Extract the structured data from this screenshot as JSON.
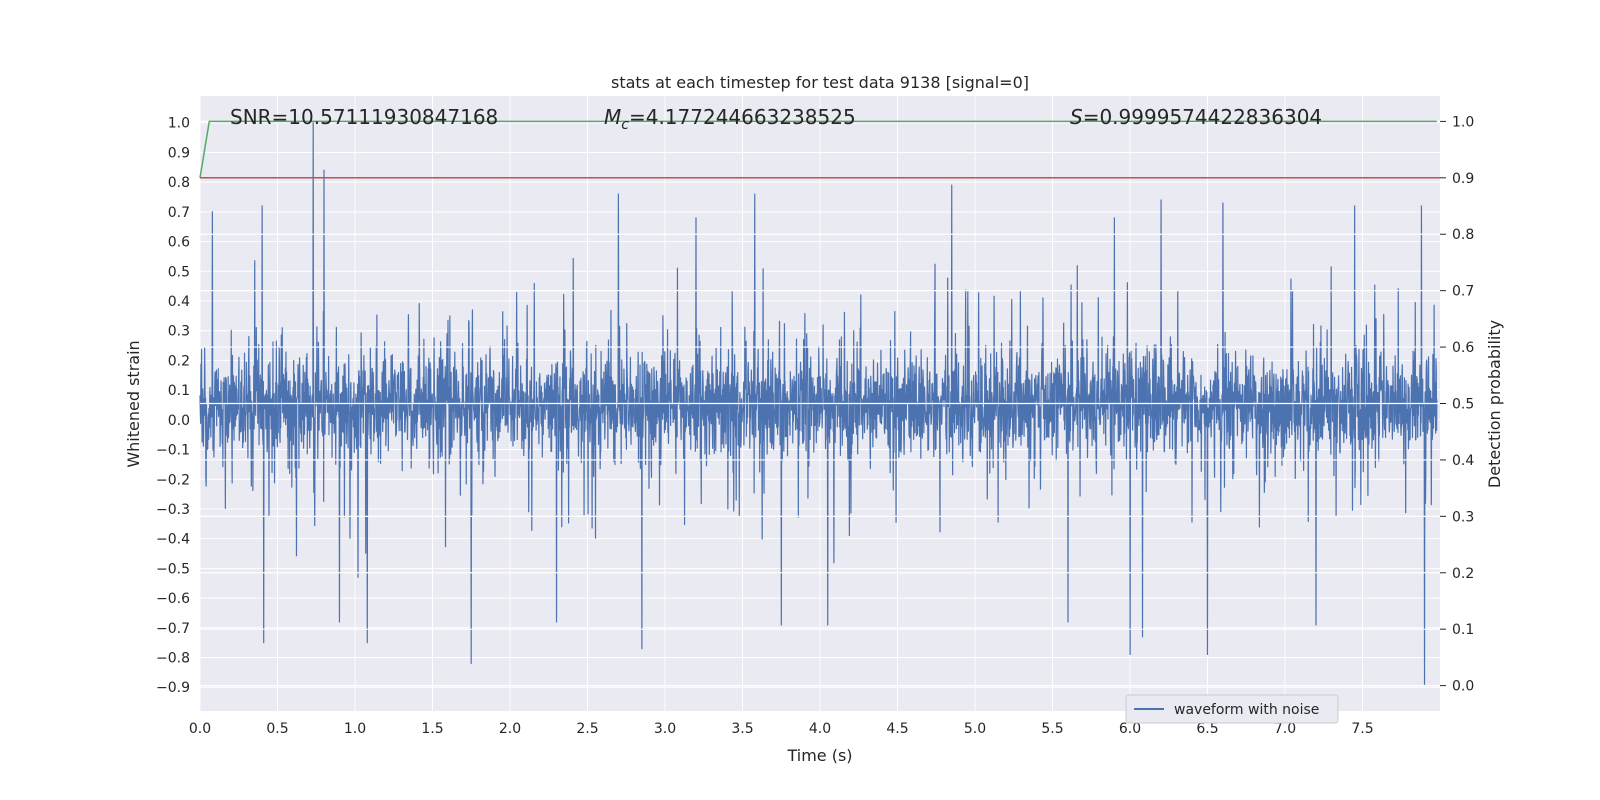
{
  "chart_data": {
    "type": "line",
    "title": "stats at each timestep for test data 9138 [signal=0]",
    "xlabel": "Time (s)",
    "ylabel": "Whitened strain",
    "y2label": "Detection probability",
    "xlim": [
      0.0,
      8.0
    ],
    "ylim": [
      -0.98,
      1.09
    ],
    "y2lim": [
      -0.045,
      1.045
    ],
    "x_ticks": [
      0.0,
      0.5,
      1.0,
      1.5,
      2.0,
      2.5,
      3.0,
      3.5,
      4.0,
      4.5,
      5.0,
      5.5,
      6.0,
      6.5,
      7.0,
      7.5
    ],
    "x_tick_labels": [
      "0.0",
      "0.5",
      "1.0",
      "1.5",
      "2.0",
      "2.5",
      "3.0",
      "3.5",
      "4.0",
      "4.5",
      "5.0",
      "5.5",
      "6.0",
      "6.5",
      "7.0",
      "7.5"
    ],
    "y_ticks": [
      -0.9,
      -0.8,
      -0.7,
      -0.6,
      -0.5,
      -0.4,
      -0.3,
      -0.2,
      -0.1,
      0.0,
      0.1,
      0.2,
      0.3,
      0.4,
      0.5,
      0.6,
      0.7,
      0.8,
      0.9,
      1.0
    ],
    "y_tick_labels": [
      "−0.9",
      "−0.8",
      "−0.7",
      "−0.6",
      "−0.5",
      "−0.4",
      "−0.3",
      "−0.2",
      "−0.1",
      "0.0",
      "0.1",
      "0.2",
      "0.3",
      "0.4",
      "0.5",
      "0.6",
      "0.7",
      "0.8",
      "0.9",
      "1.0"
    ],
    "y2_ticks": [
      0.0,
      0.1,
      0.2,
      0.3,
      0.4,
      0.5,
      0.6,
      0.7,
      0.8,
      0.9,
      1.0
    ],
    "y2_tick_labels": [
      "0.0",
      "0.1",
      "0.2",
      "0.3",
      "0.4",
      "0.5",
      "0.6",
      "0.7",
      "0.8",
      "0.9",
      "1.0"
    ],
    "grid": true,
    "legend_position": "bottom-right",
    "colors": {
      "plot_bg": "#eaeaf2",
      "grid": "#ffffff",
      "waveform": "#4c72b0",
      "probability": "#55a868",
      "threshold": "#c44e52",
      "text": "#262626"
    },
    "series": [
      {
        "name": "waveform with noise",
        "axis": "left",
        "kind": "noise-trace",
        "x_range": [
          0.0,
          7.98
        ],
        "typical_envelope": [
          -0.35,
          0.45
        ],
        "peaks": [
          {
            "x": 0.73,
            "y": 1.0
          },
          {
            "x": 0.8,
            "y": 0.84
          },
          {
            "x": 0.4,
            "y": 0.72
          },
          {
            "x": 0.08,
            "y": 0.7
          },
          {
            "x": 2.7,
            "y": 0.76
          },
          {
            "x": 3.58,
            "y": 0.76
          },
          {
            "x": 4.85,
            "y": 0.79
          },
          {
            "x": 6.2,
            "y": 0.74
          },
          {
            "x": 6.6,
            "y": 0.73
          },
          {
            "x": 7.45,
            "y": 0.72
          },
          {
            "x": 7.88,
            "y": 0.72
          },
          {
            "x": 5.9,
            "y": 0.68
          },
          {
            "x": 3.2,
            "y": 0.68
          },
          {
            "x": 1.75,
            "y": -0.82
          },
          {
            "x": 2.85,
            "y": -0.77
          },
          {
            "x": 0.41,
            "y": -0.75
          },
          {
            "x": 1.08,
            "y": -0.75
          },
          {
            "x": 6.0,
            "y": -0.79
          },
          {
            "x": 6.5,
            "y": -0.79
          },
          {
            "x": 7.9,
            "y": -0.89
          },
          {
            "x": 3.75,
            "y": -0.69
          },
          {
            "x": 4.05,
            "y": -0.69
          },
          {
            "x": 7.2,
            "y": -0.69
          },
          {
            "x": 0.9,
            "y": -0.68
          },
          {
            "x": 2.3,
            "y": -0.68
          },
          {
            "x": 5.6,
            "y": -0.68
          },
          {
            "x": 6.08,
            "y": -0.73
          }
        ]
      },
      {
        "name": "",
        "axis": "right",
        "kind": "probability",
        "x": [
          0.0,
          0.06,
          7.98
        ],
        "values": [
          0.9,
          1.0,
          1.0
        ]
      },
      {
        "name": "",
        "axis": "right",
        "kind": "threshold",
        "x": [
          0.0,
          8.0
        ],
        "values": [
          0.9,
          0.9
        ]
      }
    ],
    "annotations": [
      {
        "id": "snr",
        "text": "SNR=10.57111930847168"
      },
      {
        "id": "mc",
        "prefix": "M",
        "subscript": "c",
        "value": "=4.177244663238525"
      },
      {
        "id": "s",
        "prefix": "S",
        "value": "=0.9999574422836304"
      }
    ],
    "legend": [
      {
        "label": "waveform with noise"
      }
    ]
  }
}
